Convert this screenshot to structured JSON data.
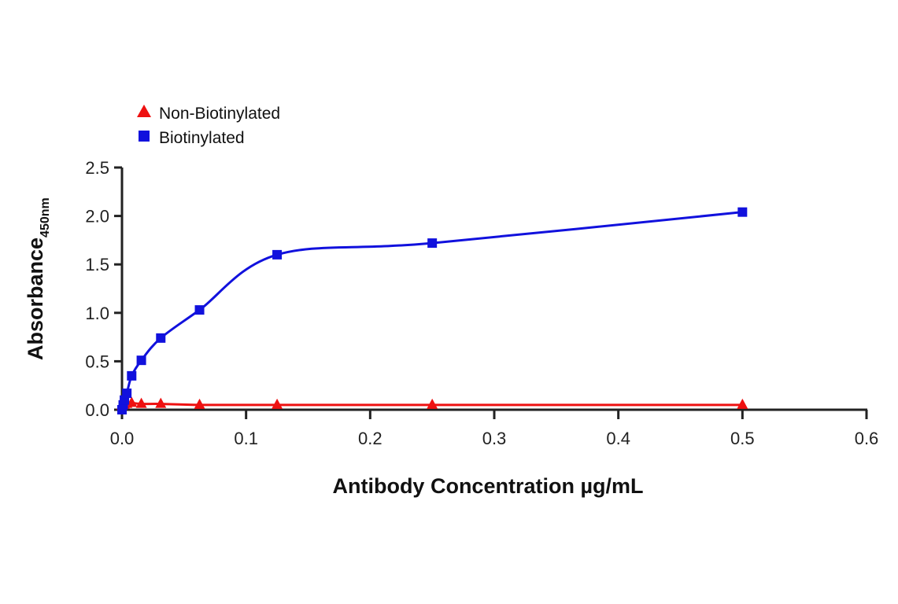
{
  "chart_data": {
    "type": "line",
    "title": "",
    "xlabel": "Antibody Concentration µg/mL",
    "ylabel": "Absorbance",
    "ylabel_subscript": "450nm",
    "xlim": [
      0,
      0.6
    ],
    "ylim": [
      0,
      2.5
    ],
    "xticks": [
      "0.0",
      "0.1",
      "0.2",
      "0.3",
      "0.4",
      "0.5",
      "0.6"
    ],
    "yticks": [
      "0.0",
      "0.5",
      "1.0",
      "1.5",
      "2.0",
      "2.5"
    ],
    "grid": false,
    "legend_position": "top-left",
    "series": [
      {
        "name": "Non-Biotinylated",
        "marker": "triangle",
        "color": "#ee1111",
        "x": [
          0,
          0.00098,
          0.00195,
          0.0039,
          0.0078,
          0.0156,
          0.03125,
          0.0625,
          0.125,
          0.25,
          0.5
        ],
        "values": [
          0.04,
          0.05,
          0.05,
          0.06,
          0.07,
          0.06,
          0.06,
          0.05,
          0.05,
          0.05,
          0.05
        ]
      },
      {
        "name": "Biotinylated",
        "marker": "square",
        "color": "#1111dd",
        "x": [
          0,
          0.00098,
          0.00195,
          0.0039,
          0.0078,
          0.0156,
          0.03125,
          0.0625,
          0.125,
          0.25,
          0.5
        ],
        "values": [
          0.0,
          0.05,
          0.1,
          0.17,
          0.35,
          0.51,
          0.74,
          1.03,
          1.6,
          1.72,
          2.04
        ]
      }
    ]
  },
  "legend": {
    "items": [
      {
        "label": "Non-Biotinylated",
        "color": "#ee1111",
        "marker": "triangle"
      },
      {
        "label": "Biotinylated",
        "color": "#1111dd",
        "marker": "square"
      }
    ]
  },
  "axes": {
    "x_title": "Antibody Concentration µg/mL",
    "y_title": "Absorbance",
    "y_subscript": "450nm"
  }
}
